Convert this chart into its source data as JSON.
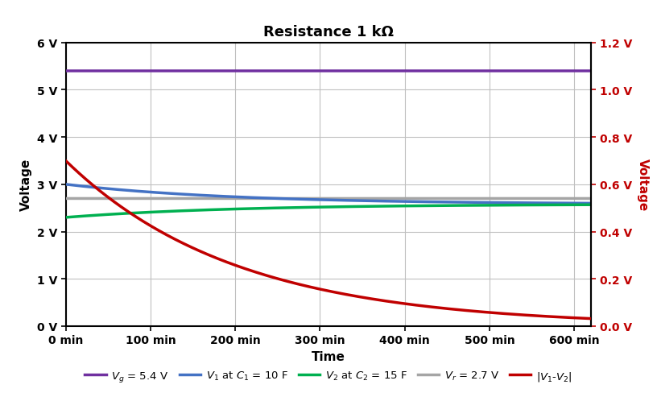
{
  "title": "Resistance 1 kΩ",
  "xlabel": "Time",
  "ylabel_left": "Voltage",
  "ylabel_right": "Voltage",
  "Vg": 5.4,
  "Vr": 2.7,
  "V1_0": 3.0,
  "V2_0": 2.3,
  "C1": 10,
  "C2": 15,
  "R": 1000,
  "tau_min": 200,
  "t_max_min": 620,
  "xlim": [
    0,
    620
  ],
  "ylim_left": [
    0,
    6
  ],
  "ylim_right": [
    0,
    1.2
  ],
  "xticks": [
    0,
    100,
    200,
    300,
    400,
    500,
    600
  ],
  "yticks_left": [
    0,
    1,
    2,
    3,
    4,
    5,
    6
  ],
  "yticks_right": [
    0.0,
    0.2,
    0.4,
    0.6,
    0.8,
    1.0,
    1.2
  ],
  "color_Vg": "#7030A0",
  "color_V1": "#4472C4",
  "color_V2": "#00B050",
  "color_Vr": "#A5A5A5",
  "color_Vdiff": "#C00000",
  "color_right_axis": "#C00000",
  "linewidth": 2.5,
  "background_color": "#FFFFFF",
  "grid_color": "#C0C0C0",
  "tick_fontsize": 10,
  "label_fontsize": 11,
  "title_fontsize": 13
}
